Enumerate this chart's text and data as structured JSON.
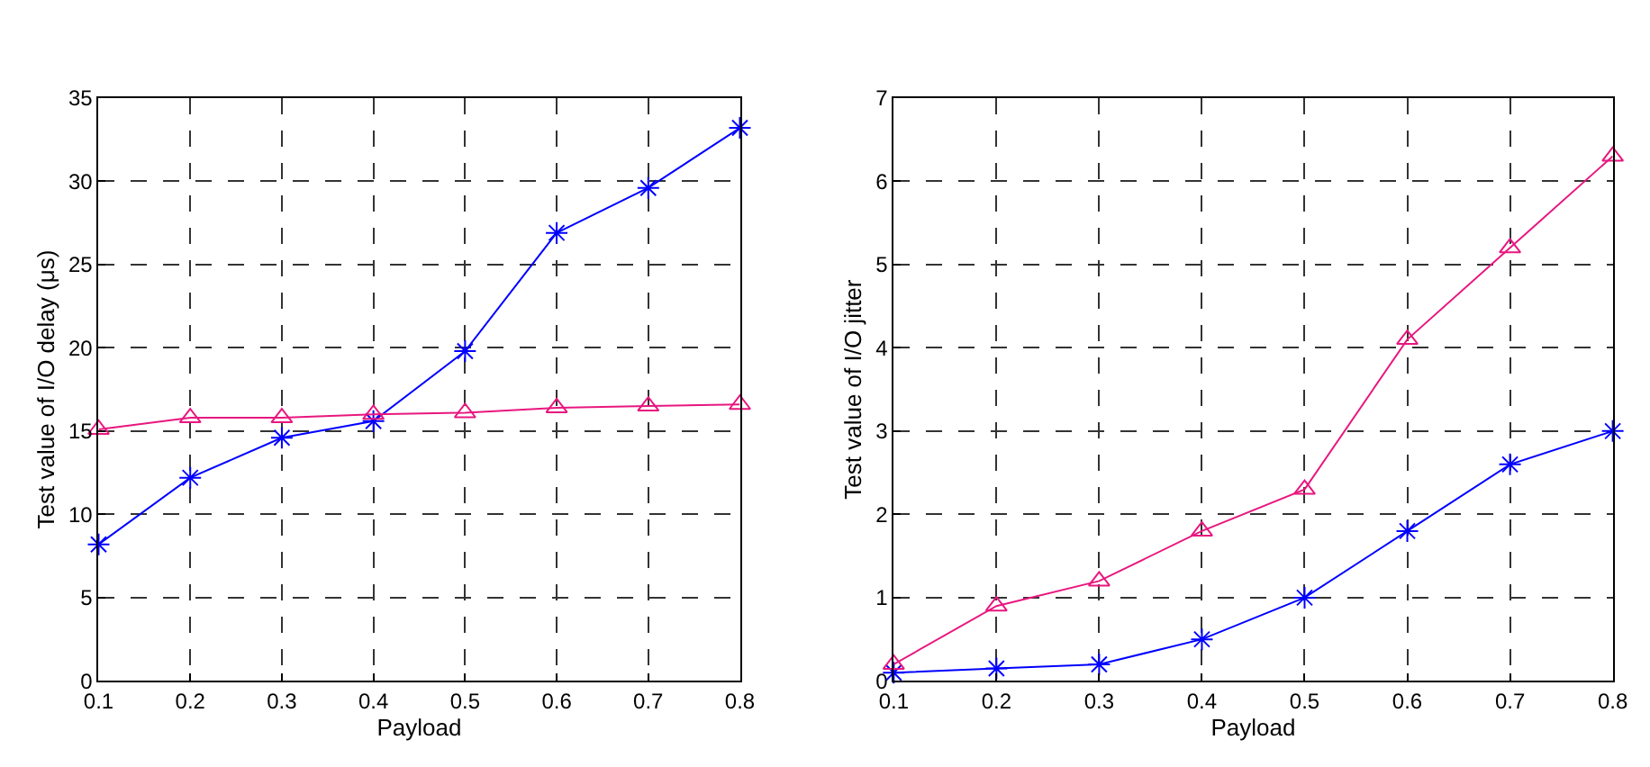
{
  "chart_data": [
    {
      "type": "line",
      "xlabel": "Payload",
      "ylabel": "Test value of I/O delay (μs)",
      "x": [
        0.1,
        0.2,
        0.3,
        0.4,
        0.5,
        0.6,
        0.7,
        0.8
      ],
      "xlim": [
        0.1,
        0.8
      ],
      "xticks": [
        0.1,
        0.2,
        0.3,
        0.4,
        0.5,
        0.6,
        0.7,
        0.8
      ],
      "ylim": [
        0,
        35
      ],
      "yticks": [
        0,
        5,
        10,
        15,
        20,
        25,
        30,
        35
      ],
      "grid": true,
      "series": [
        {
          "color": "#0000ff",
          "marker": "cross",
          "values": [
            8.2,
            12.2,
            14.6,
            15.6,
            19.8,
            26.9,
            29.6,
            33.2
          ]
        },
        {
          "color": "#e8177f",
          "marker": "triangle",
          "values": [
            15.1,
            15.8,
            15.8,
            16.0,
            16.1,
            16.4,
            16.5,
            16.6
          ]
        }
      ]
    },
    {
      "type": "line",
      "xlabel": "Payload",
      "ylabel": "Test value of I/O jitter",
      "x": [
        0.1,
        0.2,
        0.3,
        0.4,
        0.5,
        0.6,
        0.7,
        0.8
      ],
      "xlim": [
        0.1,
        0.8
      ],
      "xticks": [
        0.1,
        0.2,
        0.3,
        0.4,
        0.5,
        0.6,
        0.7,
        0.8
      ],
      "ylim": [
        0,
        7
      ],
      "yticks": [
        0,
        1,
        2,
        3,
        4,
        5,
        6,
        7
      ],
      "grid": true,
      "series": [
        {
          "color": "#0000ff",
          "marker": "cross",
          "values": [
            0.1,
            0.15,
            0.2,
            0.5,
            1.0,
            1.8,
            2.6,
            3.0
          ]
        },
        {
          "color": "#e8177f",
          "marker": "triangle",
          "values": [
            0.2,
            0.9,
            1.2,
            1.8,
            2.3,
            4.1,
            5.2,
            6.3
          ]
        }
      ]
    }
  ]
}
